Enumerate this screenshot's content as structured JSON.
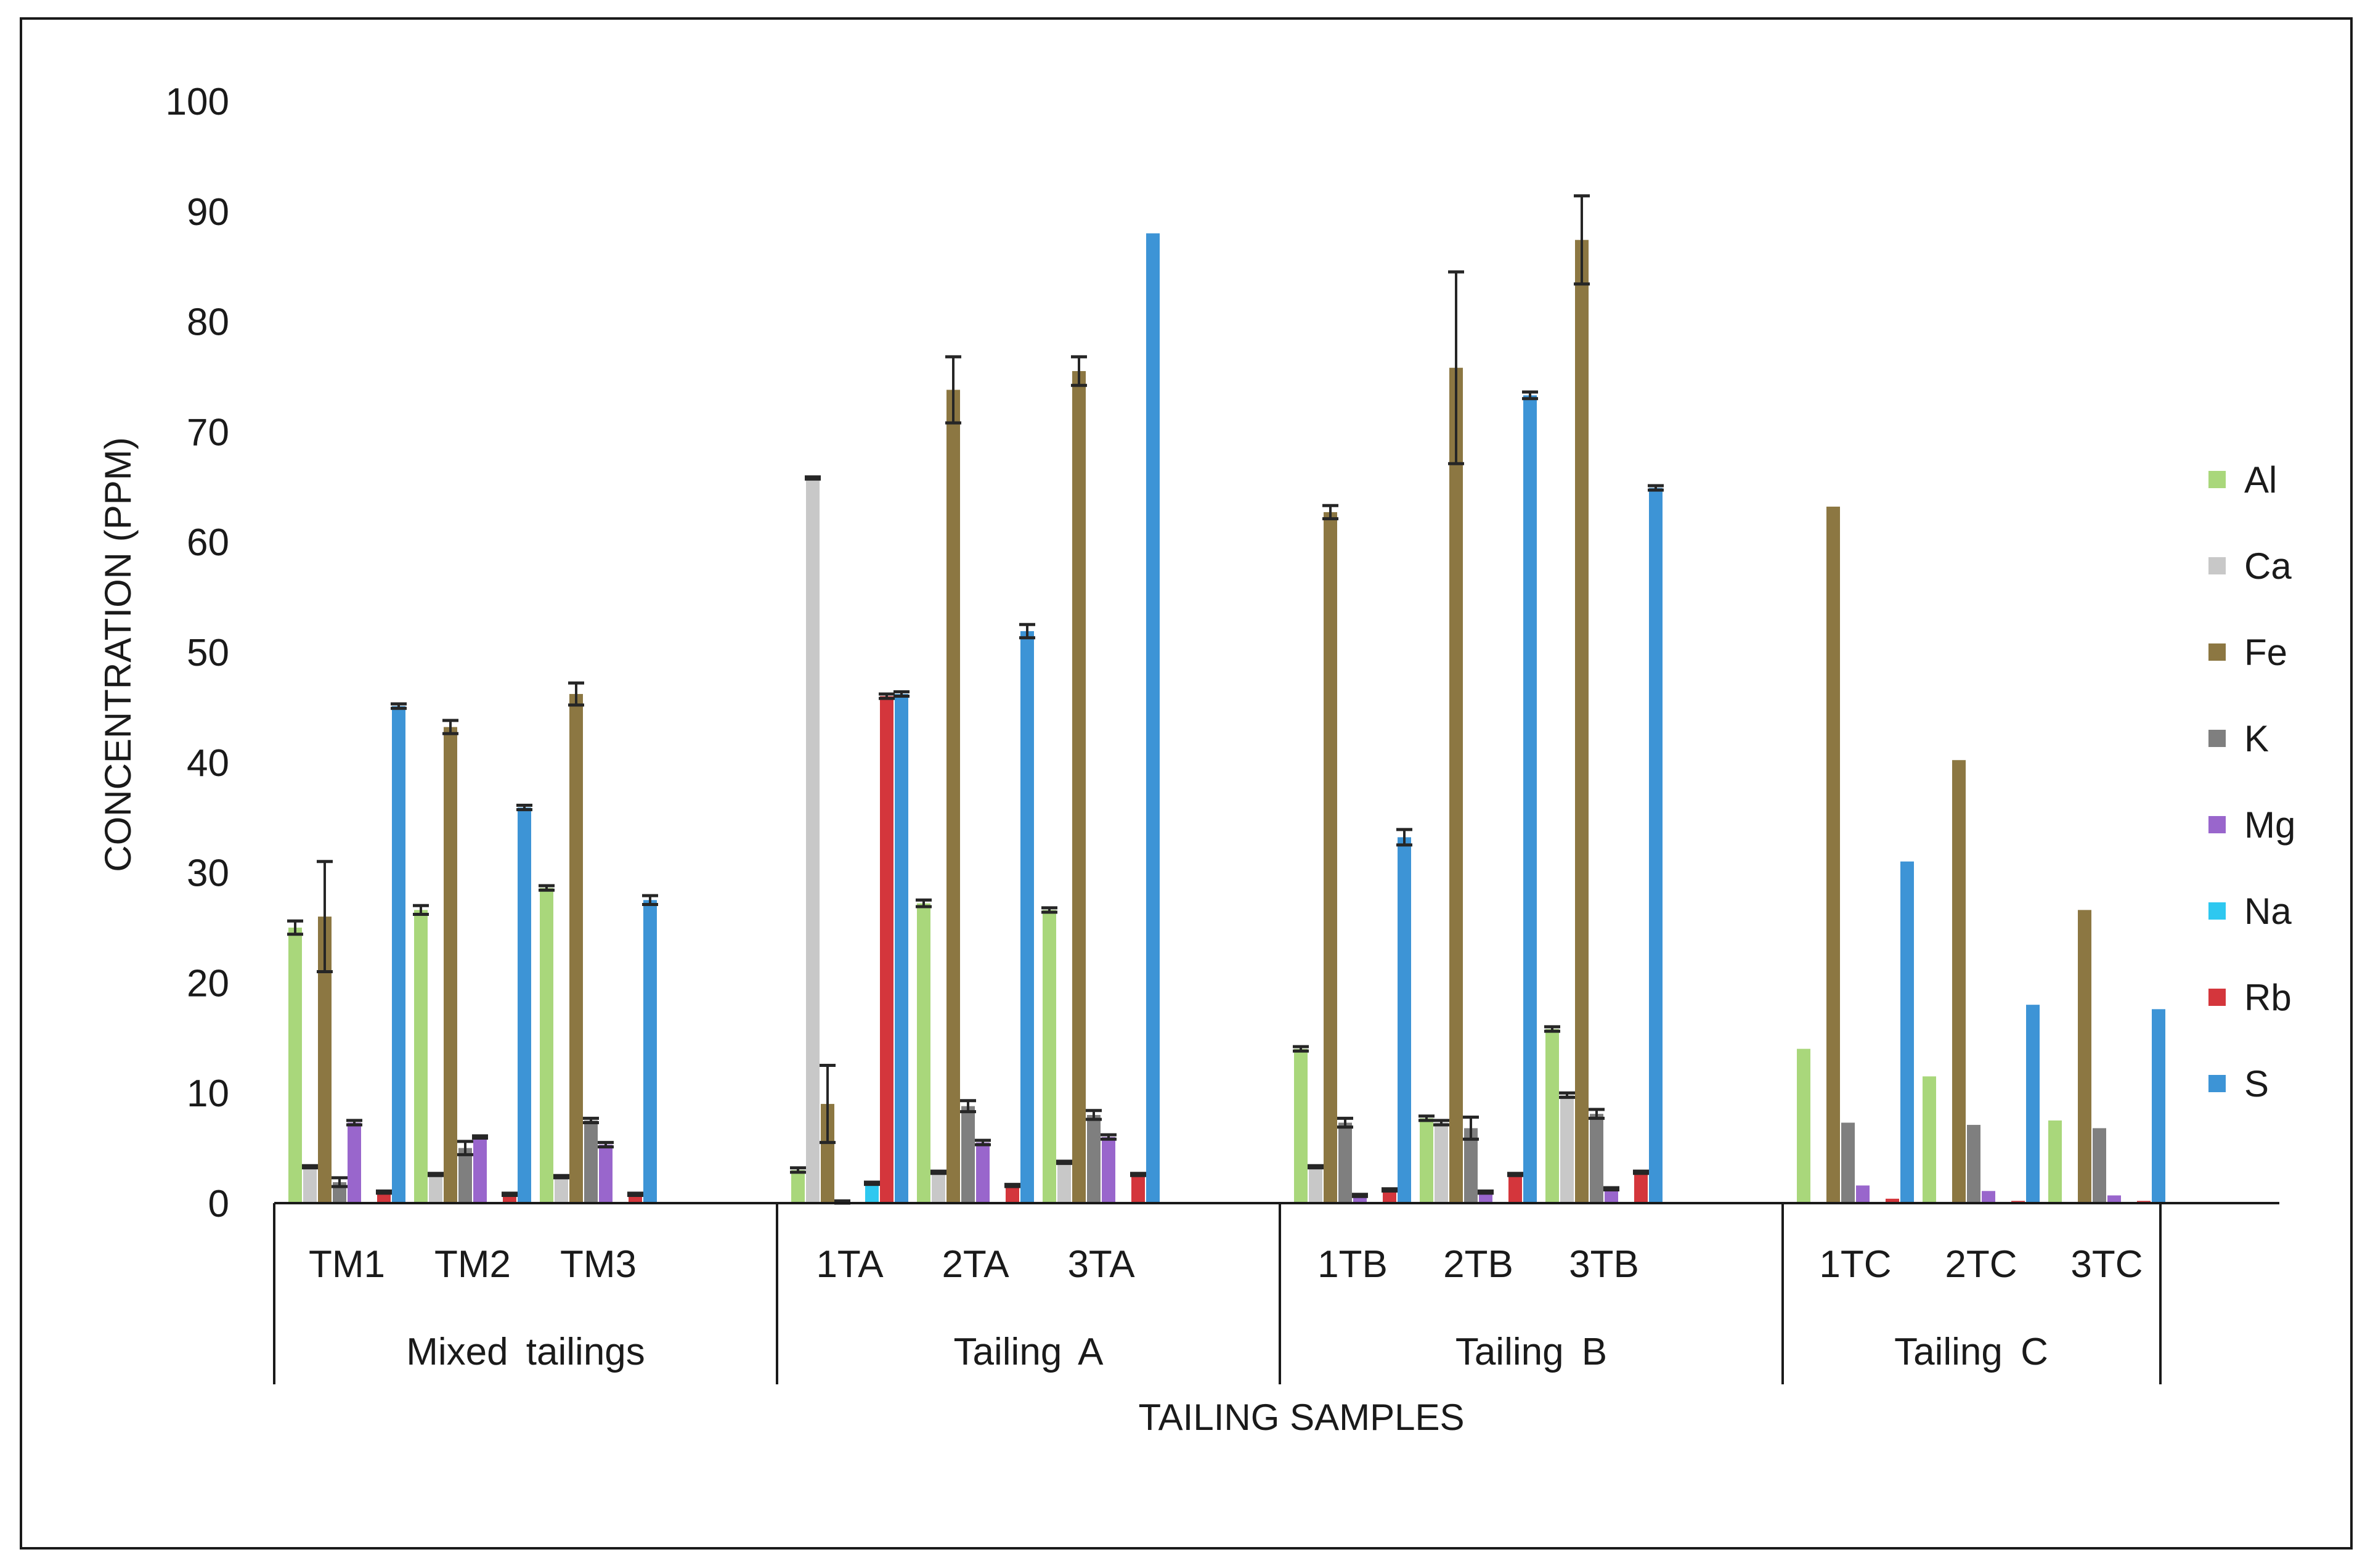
{
  "chart_data": {
    "type": "bar",
    "title": "",
    "xlabel": "TAILING SAMPLES",
    "ylabel": "CONCENTRATION (PPM)",
    "ylim": [
      0,
      100
    ],
    "yticks": [
      0,
      10,
      20,
      30,
      40,
      50,
      60,
      70,
      80,
      90,
      100
    ],
    "grid": false,
    "legend_position": "right",
    "groups": [
      {
        "name": "Mixed tailings",
        "categories": [
          "TM1",
          "TM2",
          "TM3"
        ]
      },
      {
        "name": "Tailing A",
        "categories": [
          "1TA",
          "2TA",
          "3TA"
        ]
      },
      {
        "name": "Tailing B",
        "categories": [
          "1TB",
          "2TB",
          "3TB"
        ]
      },
      {
        "name": "Tailing C",
        "categories": [
          "1TC",
          "2TC",
          "3TC"
        ]
      }
    ],
    "series": [
      {
        "name": "Al",
        "color": "#a9d77b",
        "values": [
          25,
          26.6,
          28.6,
          3,
          27.2,
          26.6,
          14,
          7.7,
          15.8,
          14,
          11.5,
          7.5
        ],
        "errors": [
          0.6,
          0.4,
          0.2,
          0.2,
          0.3,
          0.2,
          0.2,
          0.2,
          0.2,
          0,
          0,
          0
        ]
      },
      {
        "name": "Ca",
        "color": "#c8c8c8",
        "values": [
          3.3,
          2.6,
          2.4,
          65.8,
          2.8,
          3.7,
          3.3,
          7.3,
          9.8,
          0,
          0,
          0
        ],
        "errors": [
          0.1,
          0.1,
          0.1,
          0.1,
          0.1,
          0.1,
          0.1,
          0.2,
          0.2,
          0,
          0,
          0
        ]
      },
      {
        "name": "Fe",
        "color": "#8c7742",
        "values": [
          26,
          43.2,
          46.2,
          9,
          73.8,
          75.5,
          62.7,
          75.8,
          87.4,
          63.2,
          40.2,
          26.6
        ],
        "errors": [
          5,
          0.6,
          1,
          3.5,
          3,
          1.3,
          0.6,
          8.7,
          4,
          0,
          0,
          0
        ]
      },
      {
        "name": "K",
        "color": "#7f7f7f",
        "values": [
          1.9,
          5,
          7.5,
          0.1,
          8.8,
          8,
          7.3,
          6.8,
          8.1,
          7.3,
          7.1,
          6.8
        ],
        "errors": [
          0.4,
          0.6,
          0.2,
          0.1,
          0.5,
          0.4,
          0.4,
          1,
          0.4,
          0,
          0,
          0
        ]
      },
      {
        "name": "Mg",
        "color": "#9966cc",
        "values": [
          7.3,
          6,
          5.3,
          0,
          5.5,
          6,
          0.7,
          1,
          1.3,
          1.6,
          1.1,
          0.7
        ],
        "errors": [
          0.2,
          0.1,
          0.2,
          0,
          0.2,
          0.2,
          0.1,
          0.1,
          0.1,
          0,
          0,
          0
        ]
      },
      {
        "name": "Na",
        "color": "#2ec8f0",
        "values": [
          0,
          0,
          0,
          1.8,
          0,
          0,
          0,
          0,
          0,
          0,
          0,
          0
        ],
        "errors": [
          0,
          0,
          0,
          0.1,
          0,
          0,
          0,
          0,
          0,
          0,
          0,
          0
        ]
      },
      {
        "name": "Rb",
        "color": "#d4363c",
        "values": [
          1,
          0.8,
          0.8,
          46,
          1.6,
          2.6,
          1.2,
          2.6,
          2.8,
          0.4,
          0.2,
          0.2
        ],
        "errors": [
          0.1,
          0.1,
          0.1,
          0.2,
          0.1,
          0.1,
          0.1,
          0.1,
          0.1,
          0,
          0,
          0
        ]
      },
      {
        "name": "S",
        "color": "#3d94d6",
        "values": [
          45.1,
          35.9,
          27.5,
          46.2,
          51.9,
          88,
          33.2,
          73.3,
          64.9,
          31,
          18,
          17.6
        ],
        "errors": [
          0.2,
          0.2,
          0.4,
          0.2,
          0.6,
          0,
          0.7,
          0.3,
          0.2,
          0,
          0,
          0
        ]
      }
    ]
  }
}
